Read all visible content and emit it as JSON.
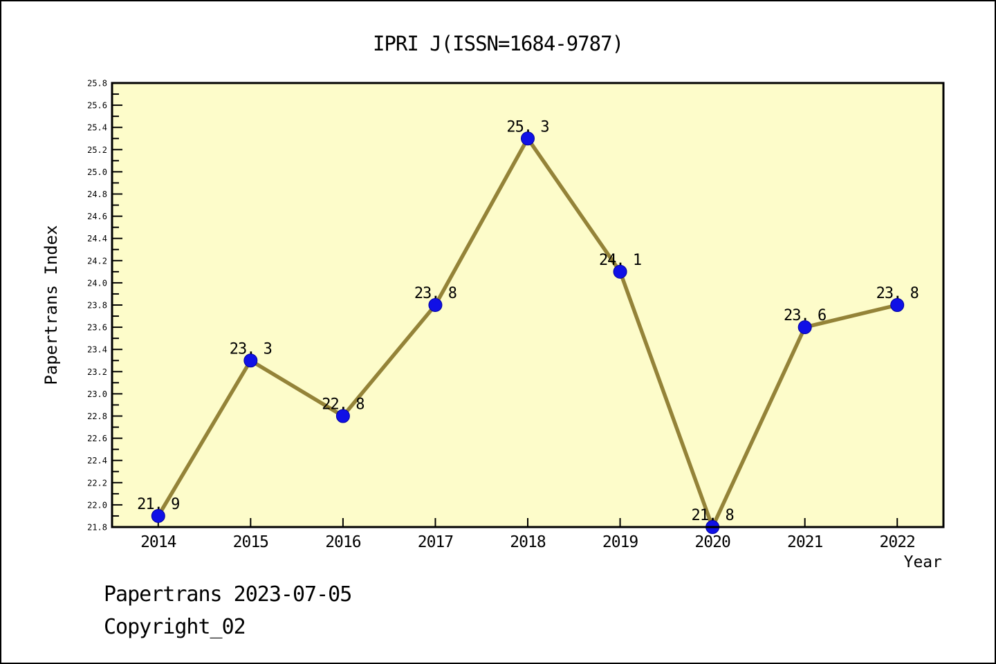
{
  "title": "IPRI J(ISSN=1684-9787)",
  "footer": {
    "line1": "Papertrans 2023-07-05",
    "line2": "Copyright_02"
  },
  "chart_data": {
    "type": "line",
    "title": "IPRI J(ISSN=1684-9787)",
    "xlabel": "Year",
    "ylabel": "Papertrans Index",
    "x": [
      2014,
      2015,
      2016,
      2017,
      2018,
      2019,
      2020,
      2021,
      2022
    ],
    "categories": [
      "2014",
      "2015",
      "2016",
      "2017",
      "2018",
      "2019",
      "2020",
      "2021",
      "2022"
    ],
    "series": [
      {
        "name": "Papertrans Index",
        "values": [
          21.9,
          23.3,
          22.8,
          23.8,
          25.3,
          24.1,
          21.8,
          23.6,
          23.8
        ],
        "point_labels": [
          "21. 9",
          "23. 3",
          "22. 8",
          "23. 8",
          "25. 3",
          "24. 1",
          "21. 8",
          "23. 6",
          "23. 8"
        ]
      }
    ],
    "ylim": [
      21.8,
      25.8
    ],
    "xlim": [
      2013.5,
      2022.5
    ],
    "ytick_major_step": 0.2,
    "ytick_minor_step": 0.1,
    "grid": false,
    "legend": "none",
    "colors": {
      "line": "#948338",
      "marker": "#1010E6",
      "marker_edge": "#0000A0",
      "plot_bg": "#FDFCCA",
      "axis": "#000000",
      "text": "#000000",
      "page_bg": "#FFFFFF"
    }
  }
}
